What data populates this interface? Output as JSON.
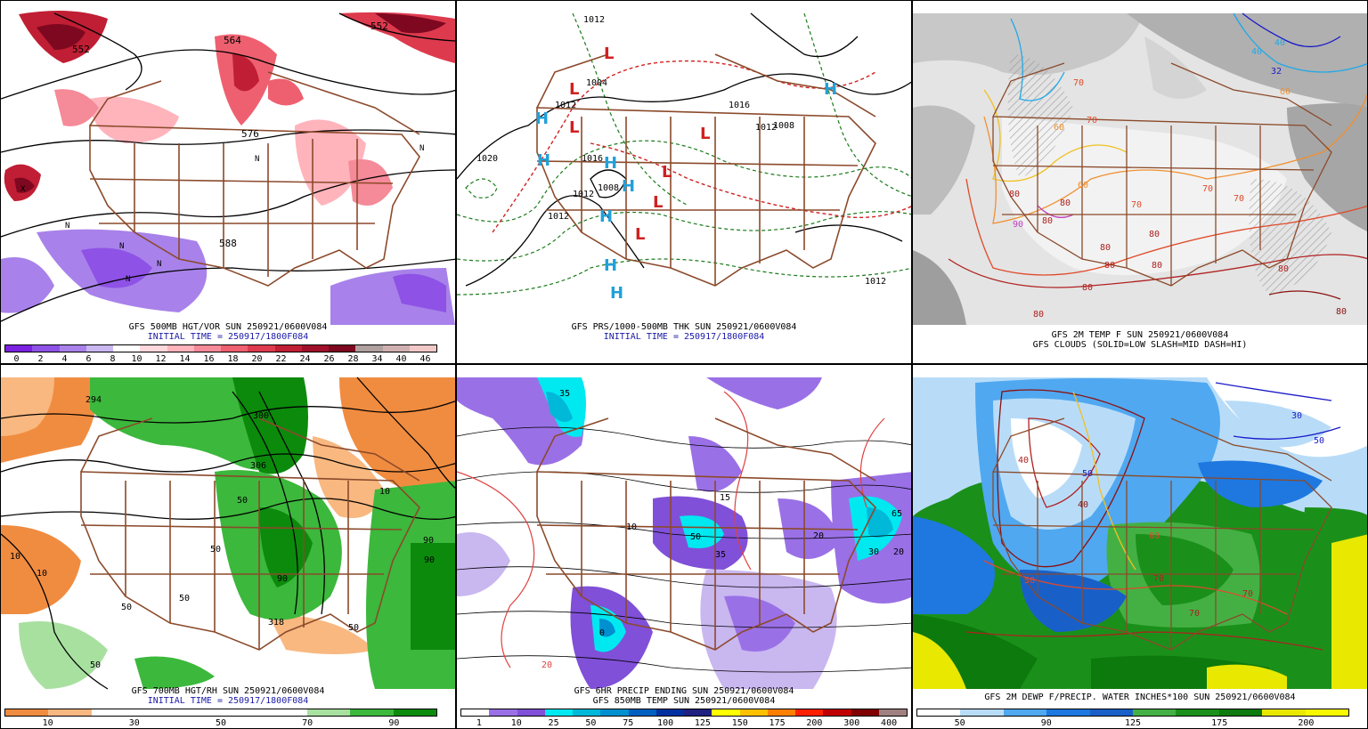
{
  "panels": [
    {
      "caption1": "GFS 500MB HGT/VOR SUN 250921/0600V084",
      "caption2": "INITIAL TIME = 250917/1800F084",
      "legend_colors": [
        "#7a22e0",
        "#8e52e6",
        "#a882ea",
        "#c9b7f0",
        "#ffffff",
        "#ffd8dc",
        "#ffb4bc",
        "#f58a98",
        "#ee6070",
        "#de3a4e",
        "#c01e34",
        "#a0102a",
        "#7e0820",
        "#b0a0a0",
        "#d0b0b0",
        "#f0c8c8"
      ],
      "legend_ticks": [
        "0",
        "2",
        "4",
        "6",
        "8",
        "10",
        "12",
        "14",
        "16",
        "18",
        "20",
        "22",
        "24",
        "26",
        "28",
        "34",
        "40",
        "46"
      ],
      "contour_labels": [
        "552",
        "564",
        "576",
        "588",
        "552"
      ],
      "symbols": [
        "N",
        "N",
        "N",
        "N",
        "N",
        "N",
        "X"
      ]
    },
    {
      "caption1": "GFS PRS/1000-500MB THK SUN 250921/0600V084",
      "caption2": "INITIAL TIME = 250917/1800F084",
      "contour_labels": [
        "1020",
        "1004",
        "1012",
        "1016",
        "1012",
        "1008",
        "1012",
        "1016",
        "1012",
        "1012",
        "1008",
        "1012"
      ],
      "highs": [
        "H",
        "H",
        "H",
        "H",
        "H",
        "H",
        "H",
        "H"
      ],
      "lows": [
        "L",
        "L",
        "L",
        "L",
        "L",
        "L",
        "L"
      ]
    },
    {
      "caption1": "GFS 2M TEMP F SUN 250921/0600V084",
      "caption2": "GFS CLOUDS (SOLID=LOW SLASH=MID DASH=HI)",
      "contour_labels": [
        "40",
        "32",
        "40",
        "70",
        "60",
        "60",
        "70",
        "70",
        "80",
        "80",
        "80",
        "80",
        "70",
        "80",
        "80",
        "80",
        "80",
        "90",
        "70",
        "80",
        "80",
        "60",
        "80"
      ]
    },
    {
      "caption1": "GFS 700MB HGT/RH SUN 250921/0600V084",
      "caption2": "INITIAL TIME = 250917/1800F084",
      "legend_colors": [
        "#f08c40",
        "#f8b880",
        "#ffffff",
        "#ffffff",
        "#ffffff",
        "#ffffff",
        "#ffffff",
        "#a8e0a0",
        "#3cb83c",
        "#0c8a0c"
      ],
      "legend_ticks": [
        "10",
        "30",
        "50",
        "70",
        "90"
      ],
      "contour_labels": [
        "294",
        "300",
        "306",
        "318",
        "10",
        "10",
        "10",
        "50",
        "50",
        "50",
        "50",
        "90",
        "90",
        "90",
        "50",
        "50"
      ]
    },
    {
      "caption1": "GFS 6HR PRECIP ENDING SUN 250921/0600V084",
      "caption2": "GFS 850MB TEMP SUN 250921/0600V084",
      "legend_colors": [
        "#ffffff",
        "#9a70e6",
        "#8050d8",
        "#00e8f0",
        "#00b8d8",
        "#0090d0",
        "#0060c0",
        "#0030a0",
        "#202080",
        "#ffff00",
        "#ffc000",
        "#ff8000",
        "#ff2000",
        "#c00000",
        "#800000",
        "#a08080"
      ],
      "legend_ticks": [
        "1",
        "10",
        "25",
        "50",
        "75",
        "100",
        "125",
        "150",
        "175",
        "200",
        "300",
        "400"
      ],
      "contour_labels": [
        "35",
        "50",
        "35",
        "15",
        "20",
        "65",
        "30",
        "20",
        "20",
        "10",
        "0"
      ]
    },
    {
      "caption1": "GFS 2M DEWP F/PRECIP. WATER INCHES*100 SUN 250921/0600V084",
      "caption2": "",
      "legend_colors": [
        "#ffffff",
        "#b8dcf8",
        "#50a8f0",
        "#1e78e0",
        "#1860c8",
        "#44b044",
        "#1a901a",
        "#0c7a0c",
        "#e8e800",
        "#f8f800"
      ],
      "legend_ticks": [
        "50",
        "90",
        "125",
        "175",
        "200"
      ],
      "contour_labels": [
        "30",
        "50",
        "40",
        "40",
        "50",
        "60",
        "50",
        "70",
        "70",
        "70"
      ]
    }
  ]
}
